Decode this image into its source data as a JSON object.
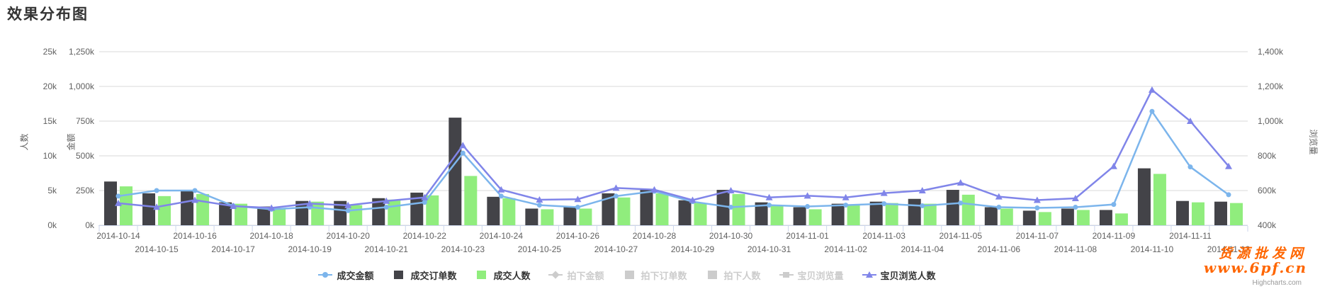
{
  "title": "效果分布图",
  "watermark": {
    "line1": "货源批发网",
    "line2": "www.6pf.cn",
    "color": "#ff6600"
  },
  "credits": "Highcharts.com",
  "colors": {
    "amount_line": "#7cb5ec",
    "orders_bar": "#434348",
    "people_bar": "#90ed7d",
    "views_line": "#8085e9",
    "disabled": "#cccccc",
    "gridline": "#d8d8d8",
    "axis_line": "#ccd6eb",
    "label_text": "#606060"
  },
  "axes": {
    "renshu": {
      "title": "人数",
      "ticks": [
        "25k",
        "20k",
        "15k",
        "10k",
        "5k",
        "0k"
      ],
      "min": 0,
      "max": 25
    },
    "jine": {
      "title": "金额",
      "ticks": [
        "1,250k",
        "1,000k",
        "750k",
        "500k",
        "250k",
        "0k"
      ],
      "min": 0,
      "max": 1250
    },
    "liulanliang": {
      "title": "浏览量",
      "ticks": [
        "1,400k",
        "1,200k",
        "1,000k",
        "800k",
        "600k",
        "400k"
      ],
      "min": 400,
      "max": 1400
    }
  },
  "legend": {
    "items": [
      {
        "label": "成交金额",
        "marker": "line-circle",
        "color": "#7cb5ec",
        "enabled": true
      },
      {
        "label": "成交订单数",
        "marker": "square",
        "color": "#434348",
        "enabled": true
      },
      {
        "label": "成交人数",
        "marker": "square",
        "color": "#90ed7d",
        "enabled": true
      },
      {
        "label": "拍下金额",
        "marker": "line-diamond",
        "color": "#cccccc",
        "enabled": false
      },
      {
        "label": "拍下订单数",
        "marker": "square",
        "color": "#cccccc",
        "enabled": false
      },
      {
        "label": "拍下人数",
        "marker": "square",
        "color": "#cccccc",
        "enabled": false
      },
      {
        "label": "宝贝浏览量",
        "marker": "line-square",
        "color": "#cccccc",
        "enabled": false
      },
      {
        "label": "宝贝浏览人数",
        "marker": "line-triangle",
        "color": "#8085e9",
        "enabled": true
      }
    ]
  },
  "chart_data": {
    "type": "mixed",
    "categories": [
      "2014-10-14",
      "2014-10-15",
      "2014-10-16",
      "2014-10-17",
      "2014-10-18",
      "2014-10-19",
      "2014-10-20",
      "2014-10-21",
      "2014-10-22",
      "2014-10-23",
      "2014-10-24",
      "2014-10-25",
      "2014-10-26",
      "2014-10-27",
      "2014-10-28",
      "2014-10-29",
      "2014-10-30",
      "2014-10-31",
      "2014-11-01",
      "2014-11-02",
      "2014-11-03",
      "2014-11-04",
      "2014-11-05",
      "2014-11-06",
      "2014-11-07",
      "2014-11-08",
      "2014-11-09",
      "2014-11-10",
      "2014-11-11",
      "2014-11-12"
    ],
    "grid": true,
    "legend_position": "bottom",
    "series": [
      {
        "name": "成交订单数",
        "type": "bar",
        "color": "#434348",
        "axis": "renshu",
        "unit": "k",
        "values": [
          6.3,
          4.6,
          5.0,
          3.3,
          2.7,
          3.5,
          3.5,
          3.9,
          4.7,
          15.5,
          4.1,
          2.4,
          2.6,
          4.6,
          5.1,
          3.6,
          5.1,
          3.3,
          2.6,
          3.1,
          3.4,
          3.8,
          5.1,
          2.6,
          2.1,
          2.4,
          2.2,
          8.2,
          3.5,
          3.4
        ]
      },
      {
        "name": "成交人数",
        "type": "bar",
        "color": "#90ed7d",
        "axis": "renshu",
        "unit": "k",
        "values": [
          5.6,
          4.2,
          4.5,
          3.1,
          2.5,
          3.4,
          2.9,
          3.7,
          4.3,
          7.1,
          3.9,
          2.3,
          2.4,
          4.0,
          4.6,
          3.2,
          4.5,
          2.9,
          2.3,
          2.9,
          3.2,
          3.1,
          4.4,
          2.4,
          1.9,
          2.2,
          1.7,
          7.4,
          3.3,
          3.2
        ]
      },
      {
        "name": "成交金额",
        "type": "line",
        "color": "#7cb5ec",
        "axis": "jine",
        "unit": "k",
        "marker": "circle",
        "values": [
          210,
          250,
          250,
          140,
          115,
          130,
          105,
          130,
          165,
          520,
          210,
          145,
          130,
          210,
          245,
          170,
          130,
          145,
          135,
          145,
          155,
          140,
          160,
          130,
          125,
          130,
          150,
          820,
          420,
          220
        ]
      },
      {
        "name": "宝贝浏览人数",
        "type": "line",
        "color": "#8085e9",
        "axis": "liulanliang",
        "unit": "k",
        "marker": "triangle",
        "values": [
          527,
          505,
          545,
          510,
          500,
          525,
          515,
          540,
          560,
          860,
          605,
          547,
          550,
          615,
          605,
          545,
          600,
          560,
          570,
          560,
          585,
          600,
          645,
          565,
          545,
          555,
          740,
          1180,
          1000,
          740
        ]
      }
    ],
    "hidden_series": [
      "拍下金额",
      "拍下订单数",
      "拍下人数",
      "宝贝浏览量"
    ]
  }
}
